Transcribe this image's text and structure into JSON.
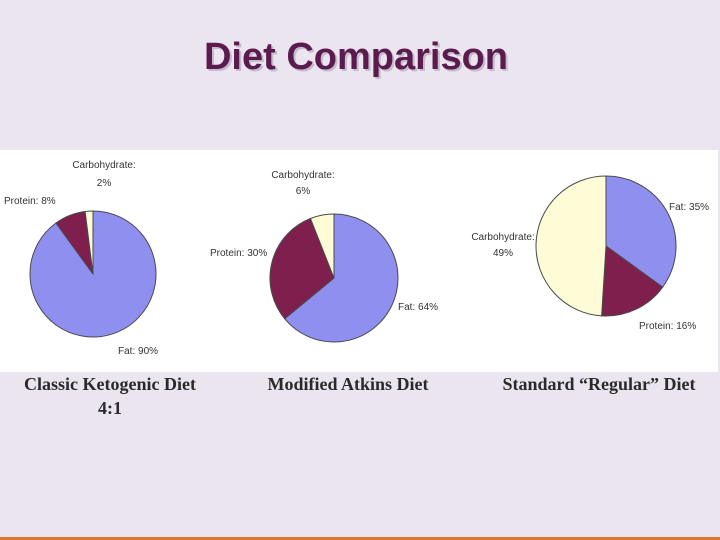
{
  "slide": {
    "title": "Diet Comparison"
  },
  "colors": {
    "background": "#ebe5f0",
    "title": "#5b1b4f",
    "fat": "#8f8ff0",
    "protein": "#7e1f4d",
    "carbohydrate": "#fefcd6",
    "accent_bar": "#e0752d"
  },
  "chart_data": [
    {
      "type": "pie",
      "title": "Classic Ketogenic Diet",
      "subtitle": "4:1",
      "categories": [
        "Fat",
        "Protein",
        "Carbohydrate"
      ],
      "values": [
        90,
        8,
        2
      ],
      "labels": [
        "Fat: 90%",
        "Protein: 8%",
        "Carbohydrate:",
        "2%"
      ]
    },
    {
      "type": "pie",
      "title": "Modified Atkins Diet",
      "subtitle": "",
      "categories": [
        "Fat",
        "Protein",
        "Carbohydrate"
      ],
      "values": [
        64,
        30,
        6
      ],
      "labels": [
        "Fat: 64%",
        "Protein: 30%",
        "Carbohydrate:",
        "6%"
      ]
    },
    {
      "type": "pie",
      "title": "Standard “Regular” Diet",
      "subtitle": "",
      "categories": [
        "Fat",
        "Protein",
        "Carbohydrate"
      ],
      "values": [
        35,
        16,
        49
      ],
      "labels": [
        "Fat: 35%",
        "Protein: 16%",
        "Carbohydrate:",
        "49%"
      ]
    }
  ]
}
